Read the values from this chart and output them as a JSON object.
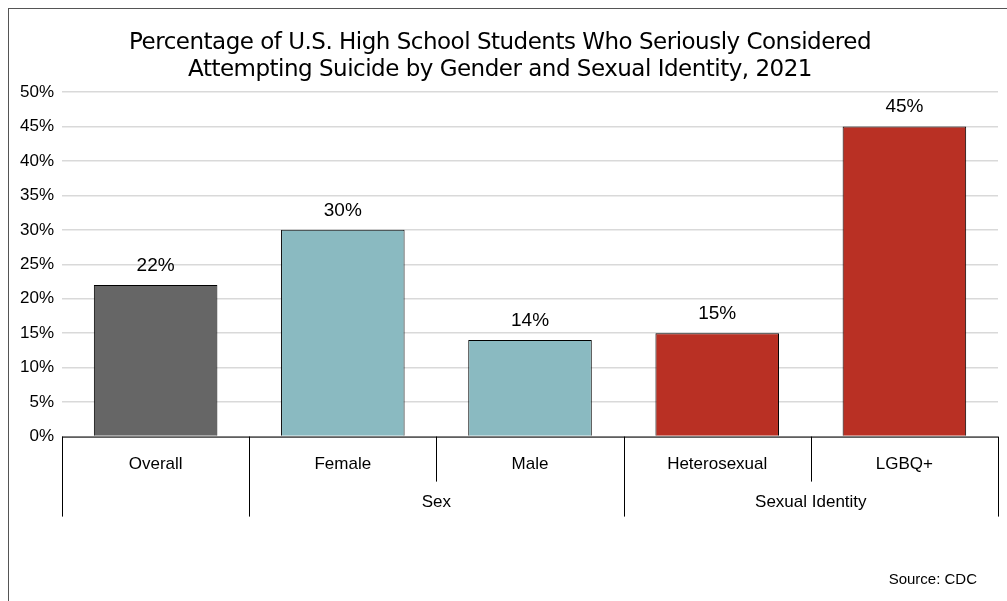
{
  "chart_data": {
    "type": "bar",
    "title": "Percentage of U.S. High School Students Who Seriously Considered Attempting Suicide by Gender and Sexual Identity, 2021",
    "categories": [
      "Overall",
      "Female",
      "Male",
      "Heterosexual",
      "LGBQ+"
    ],
    "values": [
      22,
      30,
      14,
      15,
      45
    ],
    "colors": [
      "#666666",
      "#8abac1",
      "#8abac1",
      "#b93024",
      "#b93024"
    ],
    "value_labels": [
      "22%",
      "30%",
      "14%",
      "15%",
      "45%"
    ],
    "ylim": [
      0,
      50
    ],
    "yticks": [
      {
        "value": 0,
        "label": "0%"
      },
      {
        "value": 5,
        "label": "5%"
      },
      {
        "value": 10,
        "label": "10%"
      },
      {
        "value": 15,
        "label": "15%"
      },
      {
        "value": 20,
        "label": "20%"
      },
      {
        "value": 25,
        "label": "25%"
      },
      {
        "value": 30,
        "label": "30%"
      },
      {
        "value": 35,
        "label": "35%"
      },
      {
        "value": 40,
        "label": "40%"
      },
      {
        "value": 45,
        "label": "45%"
      },
      {
        "value": 50,
        "label": "50%"
      }
    ],
    "grid": "y",
    "annotations": [
      "Sex",
      "Sexual Identity",
      "Source: CDC"
    ]
  }
}
